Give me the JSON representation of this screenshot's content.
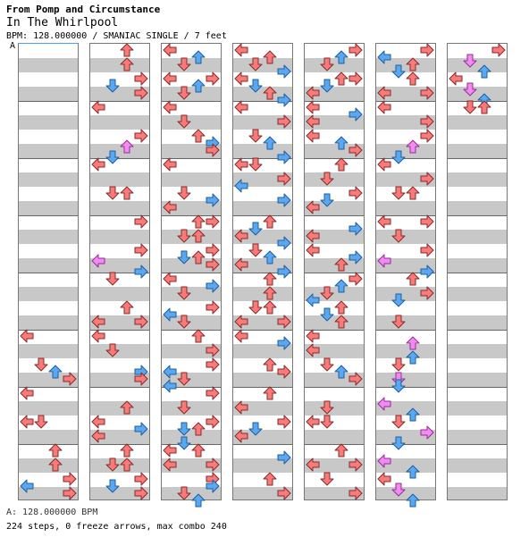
{
  "header": {
    "pack": "From Pomp and Circumstance",
    "title": "In The Whirlpool",
    "meta": "BPM: 128.000000 / SMANIAC SINGLE / 7 feet"
  },
  "bpm_marker": "A",
  "footer": {
    "bpm_line": "A: 128.000000 BPM",
    "stats": "224 steps, 0 freeze arrows, max combo 240"
  },
  "chart_info": {
    "columns": 7,
    "lanes": [
      "left",
      "down",
      "up",
      "right"
    ],
    "colors": {
      "red": "#f77b7b",
      "blue": "#5aa9f0",
      "pink": "#f08cf0"
    }
  }
}
